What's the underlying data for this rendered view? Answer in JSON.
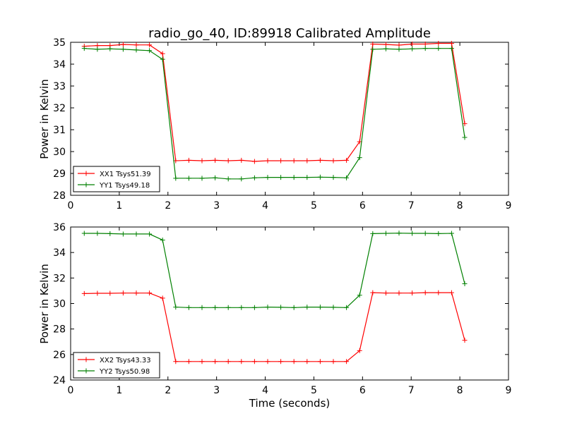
{
  "chart_data": [
    {
      "type": "line",
      "title": "radio_go_40, ID:89918 Calibrated Amplitude",
      "xlabel": "",
      "ylabel": "Power in Kelvin",
      "xlim": [
        0,
        9
      ],
      "ylim": [
        28,
        35
      ],
      "xticks": [
        "0",
        "1",
        "2",
        "3",
        "4",
        "5",
        "6",
        "7",
        "8",
        "9"
      ],
      "yticks": [
        "28",
        "29",
        "30",
        "31",
        "32",
        "33",
        "34",
        "35"
      ],
      "legend_position": "lower-left",
      "x": [
        0.28,
        0.55,
        0.81,
        1.08,
        1.35,
        1.62,
        1.89,
        2.16,
        2.43,
        2.7,
        2.97,
        3.24,
        3.51,
        3.78,
        4.05,
        4.32,
        4.59,
        4.86,
        5.13,
        5.4,
        5.67,
        5.94,
        6.21,
        6.48,
        6.75,
        7.02,
        7.29,
        7.56,
        7.83,
        8.1
      ],
      "series": [
        {
          "name": "XX1 Tsys51.39",
          "color": "#ff0000",
          "values": [
            34.82,
            34.85,
            34.85,
            34.9,
            34.88,
            34.88,
            34.48,
            29.58,
            29.6,
            29.58,
            29.6,
            29.58,
            29.6,
            29.55,
            29.58,
            29.58,
            29.58,
            29.58,
            29.6,
            29.58,
            29.6,
            30.45,
            34.92,
            34.9,
            34.87,
            34.92,
            34.92,
            34.95,
            34.95,
            31.28
          ]
        },
        {
          "name": "YY1 Tsys49.18",
          "color": "#008000",
          "values": [
            34.72,
            34.68,
            34.7,
            34.68,
            34.65,
            34.62,
            34.22,
            28.78,
            28.78,
            28.78,
            28.8,
            28.75,
            28.75,
            28.8,
            28.82,
            28.82,
            28.82,
            28.82,
            28.83,
            28.82,
            28.8,
            29.72,
            34.68,
            34.7,
            34.68,
            34.7,
            34.72,
            34.72,
            34.72,
            30.65
          ]
        }
      ]
    },
    {
      "type": "line",
      "title": "",
      "xlabel": "Time (seconds)",
      "ylabel": "Power in Kelvin",
      "xlim": [
        0,
        9
      ],
      "ylim": [
        24,
        36
      ],
      "xticks": [
        "0",
        "1",
        "2",
        "3",
        "4",
        "5",
        "6",
        "7",
        "8",
        "9"
      ],
      "yticks": [
        "24",
        "26",
        "28",
        "30",
        "32",
        "34",
        "36"
      ],
      "legend_position": "lower-left",
      "x": [
        0.28,
        0.55,
        0.81,
        1.08,
        1.35,
        1.62,
        1.89,
        2.16,
        2.43,
        2.7,
        2.97,
        3.24,
        3.51,
        3.78,
        4.05,
        4.32,
        4.59,
        4.86,
        5.13,
        5.4,
        5.67,
        5.94,
        6.21,
        6.48,
        6.75,
        7.02,
        7.29,
        7.56,
        7.83,
        8.1
      ],
      "series": [
        {
          "name": "XX2 Tsys43.33",
          "color": "#ff0000",
          "values": [
            30.78,
            30.8,
            30.8,
            30.82,
            30.82,
            30.82,
            30.42,
            25.45,
            25.45,
            25.45,
            25.45,
            25.45,
            25.45,
            25.45,
            25.45,
            25.45,
            25.45,
            25.45,
            25.45,
            25.45,
            25.45,
            26.3,
            30.85,
            30.82,
            30.82,
            30.82,
            30.85,
            30.85,
            30.85,
            27.12
          ]
        },
        {
          "name": "YY2 Tsys50.98",
          "color": "#008000",
          "values": [
            35.5,
            35.5,
            35.48,
            35.45,
            35.45,
            35.45,
            34.98,
            29.72,
            29.68,
            29.68,
            29.68,
            29.68,
            29.68,
            29.68,
            29.72,
            29.7,
            29.68,
            29.72,
            29.72,
            29.7,
            29.68,
            30.65,
            35.48,
            35.5,
            35.52,
            35.5,
            35.5,
            35.48,
            35.5,
            31.55
          ]
        }
      ]
    }
  ]
}
